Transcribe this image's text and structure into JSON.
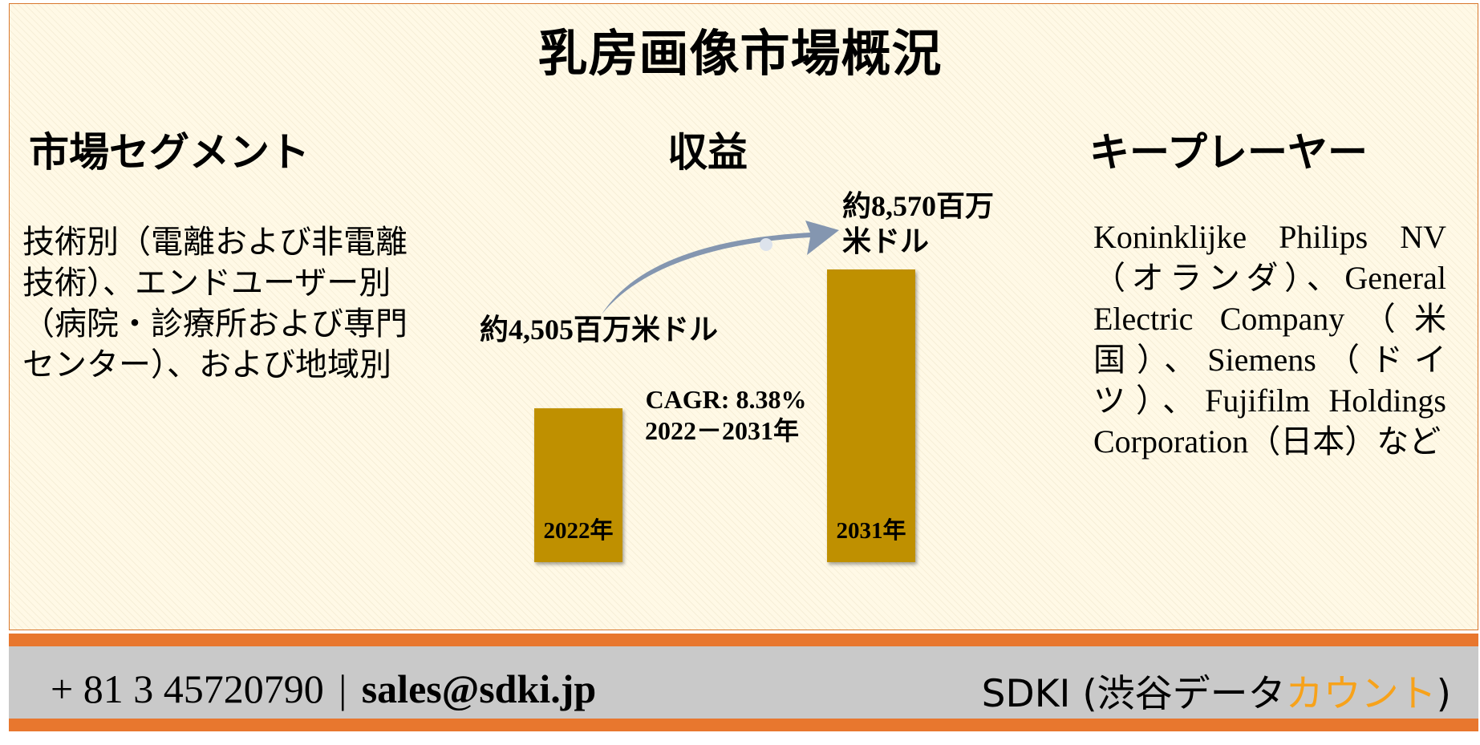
{
  "title": "乳房画像市場概況",
  "segments": {
    "heading": "市場セグメント",
    "text": "技術別（電離および非電離技術）、エンドユーザー別（病院・診療所および専門センター）、および地域別"
  },
  "revenue": {
    "heading": "収益"
  },
  "players": {
    "heading": "キープレーヤー",
    "text": "Koninklijke Philips NV（オランダ）、General Electric Company（米国）、Siemens（ドイツ）、Fujifilm Holdings Corporation（日本）など"
  },
  "chart_data": {
    "type": "bar",
    "categories": [
      "2022年",
      "2031年"
    ],
    "values": [
      4505,
      8570
    ],
    "value_labels": [
      "約4,505百万米ドル",
      "約8,570百万米ドル"
    ],
    "cagr_label": "CAGR: 8.38%",
    "cagr_period": "2022－2031年",
    "bar_color": "#bf9000",
    "arrow_color": "#8496b0"
  },
  "footer": {
    "phone": "+ 81 3 45720790",
    "separator": "|",
    "email": "sales@sdki.jp",
    "company_prefix": "SDKI (渋谷データ",
    "company_accent": "カウント",
    "company_suffix": ")",
    "accent_color": "#f7a21a"
  }
}
